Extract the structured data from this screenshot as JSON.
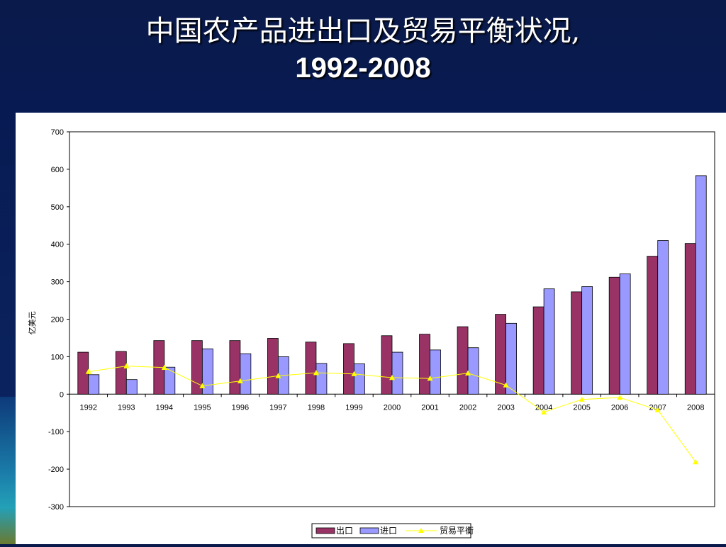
{
  "slide": {
    "title_line1": "中国农产品进出口及贸易平衡状况,",
    "title_line2": "1992-2008"
  },
  "chart_data": {
    "type": "bar",
    "ylabel": "亿美元",
    "ylim": [
      -300,
      700
    ],
    "yticks": [
      700,
      600,
      500,
      400,
      300,
      200,
      100,
      0,
      -100,
      -200,
      -300
    ],
    "categories": [
      "1992",
      "1993",
      "1994",
      "1995",
      "1996",
      "1997",
      "1998",
      "1999",
      "2000",
      "2001",
      "2002",
      "2003",
      "2004",
      "2005",
      "2006",
      "2007",
      "2008"
    ],
    "series": [
      {
        "name": "出口",
        "type": "bar",
        "color": "#993366",
        "values": [
          112,
          114,
          143,
          143,
          143,
          149,
          139,
          135,
          156,
          160,
          180,
          213,
          233,
          273,
          312,
          368,
          402
        ]
      },
      {
        "name": "进口",
        "type": "bar",
        "color": "#9999ff",
        "values": [
          52,
          39,
          72,
          121,
          108,
          100,
          82,
          81,
          112,
          118,
          124,
          189,
          281,
          287,
          321,
          410,
          583
        ]
      },
      {
        "name": "贸易平衡",
        "type": "line",
        "color": "#ffff00",
        "values": [
          60,
          75,
          71,
          22,
          35,
          49,
          57,
          54,
          44,
          42,
          56,
          24,
          -48,
          -14,
          -9,
          -42,
          -181
        ]
      }
    ],
    "legend_position": "bottom"
  }
}
